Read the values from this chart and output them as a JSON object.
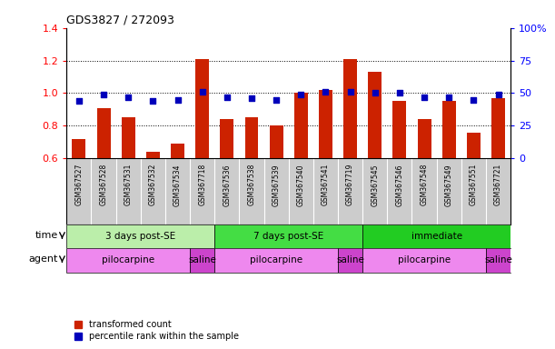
{
  "title": "GDS3827 / 272093",
  "samples": [
    "GSM367527",
    "GSM367528",
    "GSM367531",
    "GSM367532",
    "GSM367534",
    "GSM367718",
    "GSM367536",
    "GSM367538",
    "GSM367539",
    "GSM367540",
    "GSM367541",
    "GSM367719",
    "GSM367545",
    "GSM367546",
    "GSM367548",
    "GSM367549",
    "GSM367551",
    "GSM367721"
  ],
  "red_values": [
    0.72,
    0.91,
    0.85,
    0.64,
    0.69,
    1.21,
    0.84,
    0.85,
    0.8,
    1.0,
    1.02,
    1.21,
    1.13,
    0.95,
    0.84,
    0.95,
    0.76,
    0.97
  ],
  "blue_pct": [
    44,
    49,
    47,
    44,
    45,
    51,
    47,
    46,
    45,
    49,
    51,
    51,
    50,
    50,
    47,
    47,
    45,
    49
  ],
  "ylim_left": [
    0.6,
    1.4
  ],
  "ylim_right": [
    0,
    100
  ],
  "yticks_left": [
    0.6,
    0.8,
    1.0,
    1.2,
    1.4
  ],
  "yticks_right": [
    0,
    25,
    50,
    75,
    100
  ],
  "ytick_labels_right": [
    "0",
    "25",
    "50",
    "75",
    "100%"
  ],
  "bar_color": "#cc2200",
  "dot_color": "#0000bb",
  "bar_width": 0.55,
  "time_groups": [
    {
      "label": "3 days post-SE",
      "start": 0,
      "end": 5,
      "color": "#bbeeaa"
    },
    {
      "label": "7 days post-SE",
      "start": 6,
      "end": 11,
      "color": "#44dd44"
    },
    {
      "label": "immediate",
      "start": 12,
      "end": 17,
      "color": "#22cc22"
    }
  ],
  "agent_groups": [
    {
      "label": "pilocarpine",
      "start": 0,
      "end": 4,
      "color": "#ee88ee"
    },
    {
      "label": "saline",
      "start": 5,
      "end": 5,
      "color": "#cc44cc"
    },
    {
      "label": "pilocarpine",
      "start": 6,
      "end": 10,
      "color": "#ee88ee"
    },
    {
      "label": "saline",
      "start": 11,
      "end": 11,
      "color": "#cc44cc"
    },
    {
      "label": "pilocarpine",
      "start": 12,
      "end": 16,
      "color": "#ee88ee"
    },
    {
      "label": "saline",
      "start": 17,
      "end": 17,
      "color": "#cc44cc"
    }
  ],
  "time_label": "time",
  "agent_label": "agent",
  "legend_red": "transformed count",
  "legend_blue": "percentile rank within the sample",
  "xtick_bg": "#cccccc",
  "background_color": "#ffffff"
}
